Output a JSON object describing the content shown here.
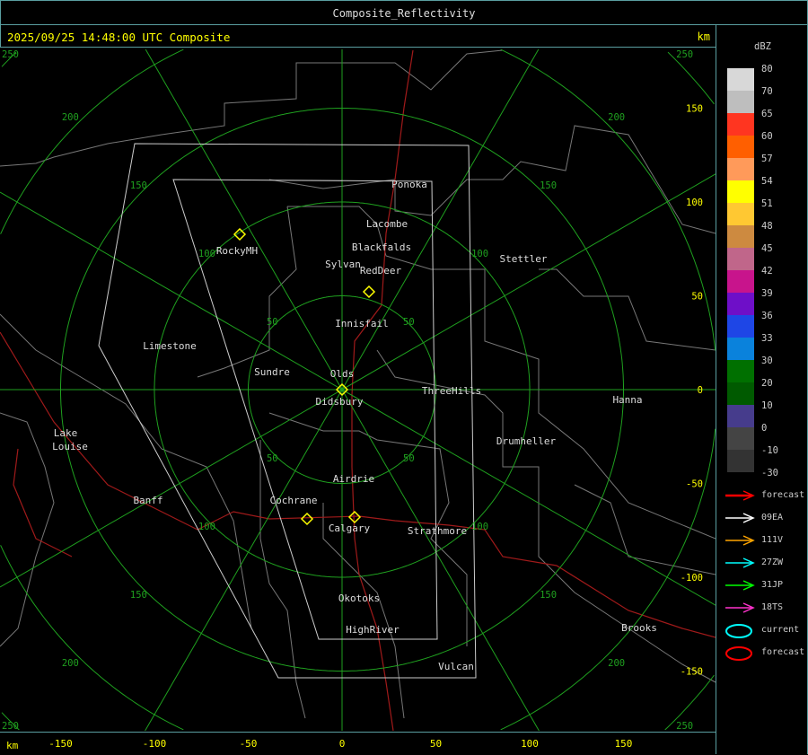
{
  "window": {
    "title": "Composite_Reflectivity"
  },
  "header": {
    "timestamp": "2025/09/25 14:48:00 UTC Composite",
    "unit_top": "km"
  },
  "axes": {
    "unit_bottom": "km",
    "x_ticks": [
      "-150",
      "-100",
      "-50",
      "0",
      "50",
      "100",
      "150"
    ],
    "y_ticks": [
      "150",
      "100",
      "50",
      "0",
      "-50",
      "-100",
      "-150"
    ],
    "range_ring_labels_km": [
      "50",
      "100",
      "150",
      "200",
      "250"
    ]
  },
  "towns": [
    "Ponoka",
    "Lacombe",
    "Blackfalds",
    "Sylvan",
    "RedDeer",
    "RockyMH",
    "Stettler",
    "Innisfail",
    "Limestone",
    "Sundre",
    "Olds",
    "Didsbury",
    "ThreeHills",
    "Hanna",
    "Drumheller",
    "Lake",
    "Louise",
    "Airdrie",
    "Banff",
    "Cochrane",
    "Calgary",
    "Strathmore",
    "Okotoks",
    "HighRiver",
    "Brooks",
    "Vulcan"
  ],
  "colorbar": {
    "unit": "dBZ",
    "levels": [
      {
        "label": "80",
        "color": "#d8d8d8"
      },
      {
        "label": "70",
        "color": "#bebebe"
      },
      {
        "label": "65",
        "color": "#ff3520"
      },
      {
        "label": "60",
        "color": "#ff5f00"
      },
      {
        "label": "57",
        "color": "#ff9a5a"
      },
      {
        "label": "54",
        "color": "#ffff00"
      },
      {
        "label": "51",
        "color": "#ffc832"
      },
      {
        "label": "48",
        "color": "#cd8a40"
      },
      {
        "label": "45",
        "color": "#c0668a"
      },
      {
        "label": "42",
        "color": "#c8148c"
      },
      {
        "label": "39",
        "color": "#6e0fc8"
      },
      {
        "label": "36",
        "color": "#1e46e6"
      },
      {
        "label": "33",
        "color": "#0a82dc"
      },
      {
        "label": "30",
        "color": "#007000"
      },
      {
        "label": "20",
        "color": "#005a00"
      },
      {
        "label": "10",
        "color": "#463c8c"
      },
      {
        "label": "0",
        "color": "#444444"
      },
      {
        "label": "-10",
        "color": "#333333"
      },
      {
        "label": "-30",
        "color": ""
      }
    ]
  },
  "legend": [
    {
      "label": "forecast",
      "type": "arrow",
      "color": "#ff0000"
    },
    {
      "label": "09EA",
      "type": "arrow",
      "color": "#ffffff"
    },
    {
      "label": "111V",
      "type": "arrow",
      "color": "#ffa500"
    },
    {
      "label": "27ZW",
      "type": "arrow",
      "color": "#00ffff"
    },
    {
      "label": "31JP",
      "type": "arrow",
      "color": "#00ff00"
    },
    {
      "label": "18TS",
      "type": "arrow",
      "color": "#ff33cc"
    },
    {
      "label": "current",
      "type": "ellipse",
      "color": "#00ffff"
    },
    {
      "label": "forecast",
      "type": "ellipse",
      "color": "#ff0000"
    }
  ],
  "colors": {
    "frame": "#5a9ea0",
    "rings": "#1fa01f",
    "boundaries": "#777777",
    "highway": "#a01a1a",
    "radar_symbol": "#ffff00",
    "text": "#dddddd"
  }
}
